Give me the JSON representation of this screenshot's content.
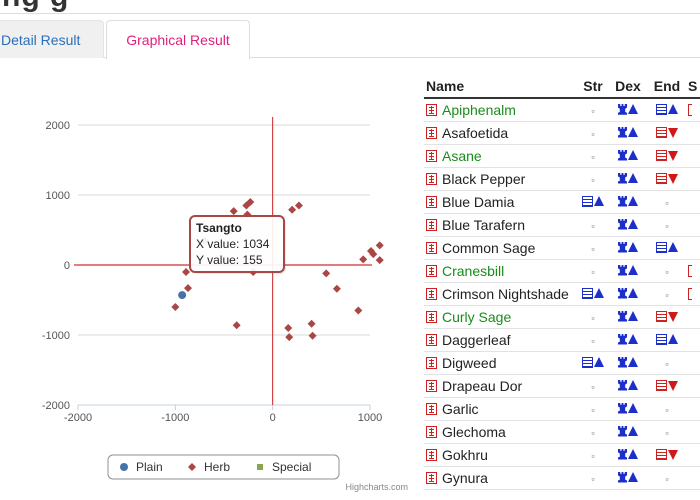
{
  "page": {
    "heading_fragment": "ng g"
  },
  "tabs": [
    {
      "label": "Detail Result",
      "active": false
    },
    {
      "label": "Graphical Result",
      "active": true
    }
  ],
  "colors": {
    "tab_active": "#e0207a",
    "tab_inactive": "#2a6ebb",
    "green_name": "#1a8c1a",
    "plain_series": "#4572a7",
    "herb_series": "#aa4643",
    "special_series": "#89a54e",
    "up_icon": "#1c2fc9",
    "down_icon": "#d01818"
  },
  "chart_data": {
    "type": "scatter",
    "title": "",
    "xlabel": "",
    "ylabel": "",
    "xlim": [
      -2000,
      1000
    ],
    "ylim": [
      -2000,
      2000
    ],
    "x_ticks": [
      -2000,
      -1000,
      0,
      1000
    ],
    "y_ticks": [
      2000,
      1000,
      0,
      -1000,
      -2000
    ],
    "grid": "horizontal",
    "legend_position": "bottom-center",
    "crosshair": {
      "x": 0,
      "y": 0
    },
    "tooltip": {
      "title": "Tsangto",
      "x_label": "X value: 1034",
      "y_label": "Y value: 155"
    },
    "series": [
      {
        "name": "Plain",
        "marker": "circle",
        "color": "#4572a7",
        "points": [
          [
            -930,
            -430
          ]
        ]
      },
      {
        "name": "Herb",
        "marker": "diamond",
        "color": "#aa4643",
        "points": [
          [
            -1000,
            -600
          ],
          [
            -870,
            -330
          ],
          [
            -890,
            -100
          ],
          [
            -700,
            350
          ],
          [
            -400,
            770
          ],
          [
            -270,
            850
          ],
          [
            -230,
            900
          ],
          [
            -260,
            720
          ],
          [
            -370,
            -860
          ],
          [
            200,
            790
          ],
          [
            270,
            850
          ],
          [
            160,
            -900
          ],
          [
            170,
            -1030
          ],
          [
            400,
            -840
          ],
          [
            410,
            -1010
          ],
          [
            660,
            -340
          ],
          [
            880,
            -650
          ],
          [
            930,
            80
          ],
          [
            1010,
            200
          ],
          [
            1034,
            155
          ],
          [
            1100,
            280
          ],
          [
            1100,
            70
          ],
          [
            -200,
            -100
          ],
          [
            550,
            -120
          ]
        ]
      },
      {
        "name": "Special",
        "marker": "square",
        "color": "#89a54e",
        "points": []
      }
    ]
  },
  "credits": "Highcharts.com",
  "table": {
    "headers": {
      "name": "Name",
      "str": "Str",
      "dex": "Dex",
      "end": "End",
      "extra": "S"
    },
    "rows": [
      {
        "name": "Apiphenalm",
        "green": true,
        "str": [
          "dot"
        ],
        "dex": [
          "rook",
          "up"
        ],
        "end": [
          "book",
          "up"
        ],
        "edge": true
      },
      {
        "name": "Asafoetida",
        "green": false,
        "str": [
          "dot"
        ],
        "dex": [
          "rook",
          "up"
        ],
        "end": [
          "book-red",
          "down"
        ],
        "edge": false
      },
      {
        "name": "Asane",
        "green": true,
        "str": [
          "dot"
        ],
        "dex": [
          "rook",
          "up"
        ],
        "end": [
          "book-red",
          "down"
        ],
        "edge": false
      },
      {
        "name": "Black Pepper",
        "green": false,
        "str": [
          "dot"
        ],
        "dex": [
          "rook",
          "up"
        ],
        "end": [
          "book-red",
          "down"
        ],
        "edge": false
      },
      {
        "name": "Blue Damia",
        "green": false,
        "str": [
          "book",
          "up"
        ],
        "dex": [
          "rook",
          "up"
        ],
        "end": [
          "dot"
        ],
        "edge": false
      },
      {
        "name": "Blue Tarafern",
        "green": false,
        "str": [
          "dot"
        ],
        "dex": [
          "rook",
          "up"
        ],
        "end": [
          "dot"
        ],
        "edge": false
      },
      {
        "name": "Common Sage",
        "green": false,
        "str": [
          "dot"
        ],
        "dex": [
          "rook",
          "up"
        ],
        "end": [
          "book",
          "up"
        ],
        "edge": false
      },
      {
        "name": "Cranesbill",
        "green": true,
        "str": [
          "dot"
        ],
        "dex": [
          "rook",
          "up"
        ],
        "end": [
          "dot"
        ],
        "edge": true
      },
      {
        "name": "Crimson Nightshade",
        "green": false,
        "str": [
          "book",
          "up"
        ],
        "dex": [
          "rook",
          "up"
        ],
        "end": [
          "dot"
        ],
        "edge": true
      },
      {
        "name": "Curly Sage",
        "green": true,
        "str": [
          "dot"
        ],
        "dex": [
          "rook",
          "up"
        ],
        "end": [
          "book-red",
          "down"
        ],
        "edge": false
      },
      {
        "name": "Daggerleaf",
        "green": false,
        "str": [
          "dot"
        ],
        "dex": [
          "rook",
          "up"
        ],
        "end": [
          "book",
          "up"
        ],
        "edge": false
      },
      {
        "name": "Digweed",
        "green": false,
        "str": [
          "book",
          "up"
        ],
        "dex": [
          "rook",
          "up"
        ],
        "end": [
          "dot"
        ],
        "edge": false
      },
      {
        "name": "Drapeau Dor",
        "green": false,
        "str": [
          "dot"
        ],
        "dex": [
          "rook",
          "up"
        ],
        "end": [
          "book-red",
          "down"
        ],
        "edge": false
      },
      {
        "name": "Garlic",
        "green": false,
        "str": [
          "dot"
        ],
        "dex": [
          "rook",
          "up"
        ],
        "end": [
          "dot"
        ],
        "edge": false
      },
      {
        "name": "Glechoma",
        "green": false,
        "str": [
          "dot"
        ],
        "dex": [
          "rook",
          "up"
        ],
        "end": [
          "dot"
        ],
        "edge": false
      },
      {
        "name": "Gokhru",
        "green": false,
        "str": [
          "dot"
        ],
        "dex": [
          "rook",
          "up"
        ],
        "end": [
          "book-red",
          "down"
        ],
        "edge": false
      },
      {
        "name": "Gynura",
        "green": false,
        "str": [
          "dot"
        ],
        "dex": [
          "rook",
          "up"
        ],
        "end": [
          "dot"
        ],
        "edge": false
      }
    ]
  }
}
